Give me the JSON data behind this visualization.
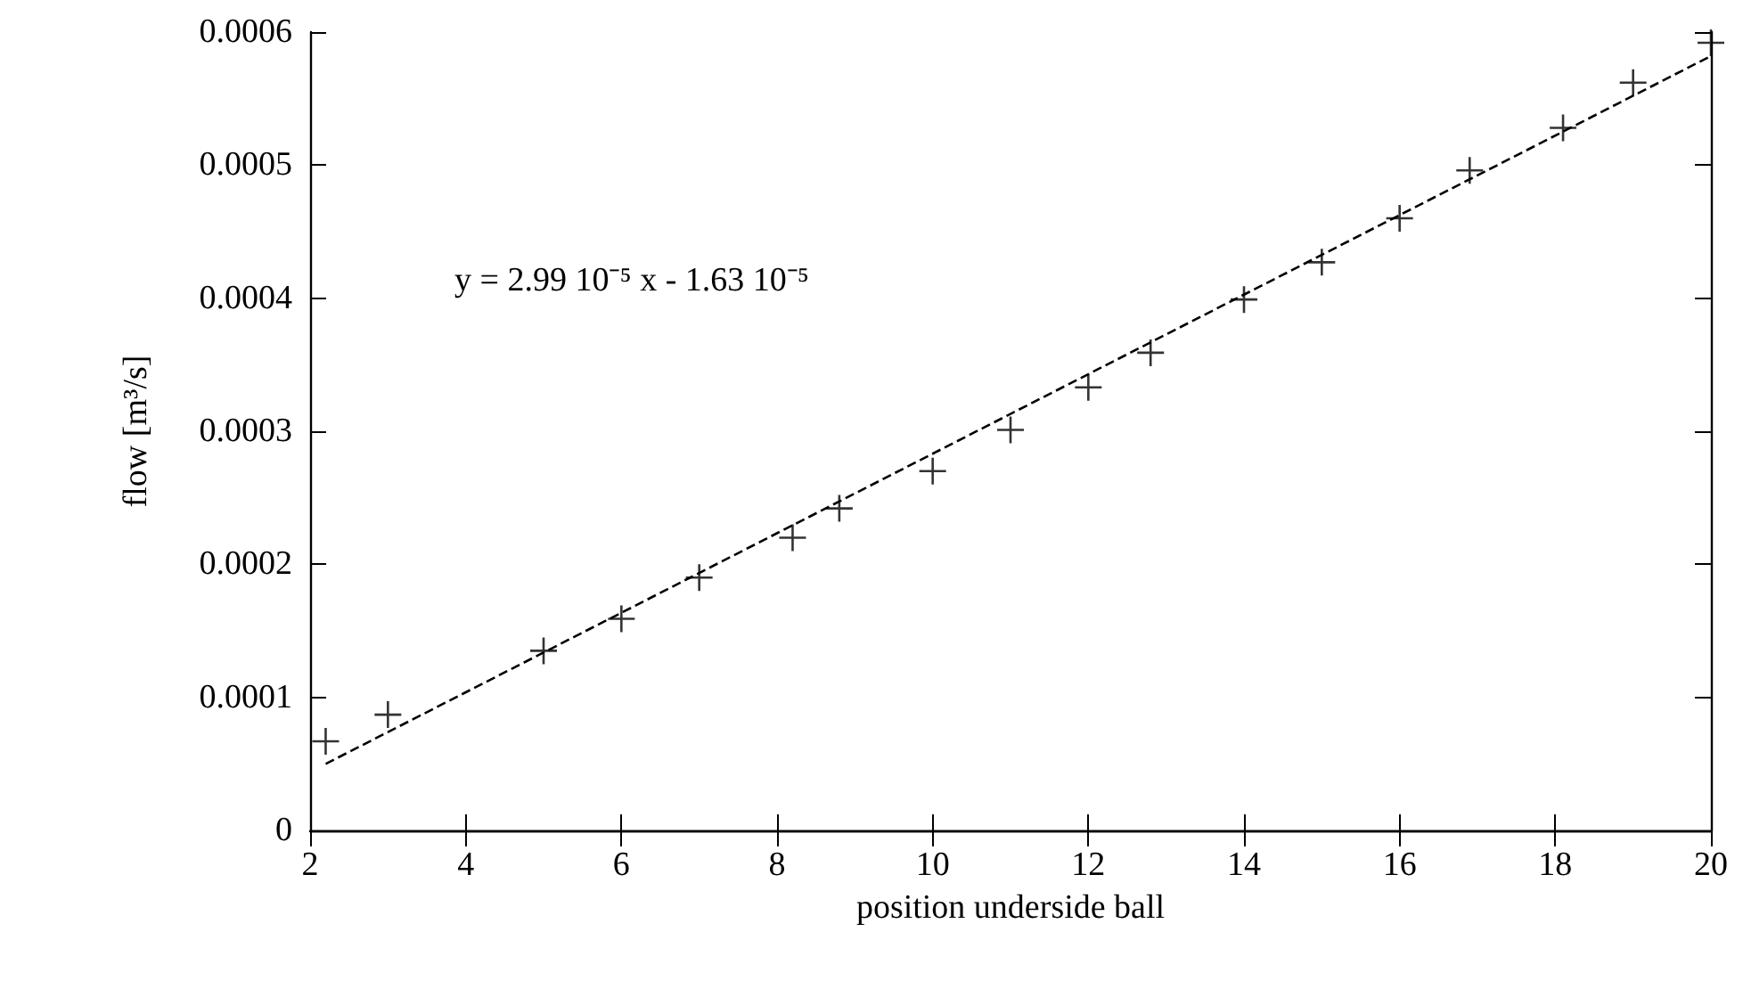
{
  "chart_data": {
    "type": "scatter",
    "xlabel": "position underside ball",
    "ylabel": "flow [m³/s]",
    "annotations": [
      "y = 2.99 10⁻⁵ x - 1.63 10⁻⁵"
    ],
    "xlim": [
      2,
      20
    ],
    "xticks": [
      2,
      4,
      6,
      8,
      10,
      12,
      14,
      16,
      18,
      20
    ],
    "ylim": [
      0,
      0.0006
    ],
    "yticks": [
      0,
      0.0001,
      0.0002,
      0.0003,
      0.0004,
      0.0005,
      0.0006
    ],
    "grid": false,
    "series": [
      {
        "marker": "cross",
        "color": "#000000",
        "x": [
          2.2,
          3,
          5,
          6,
          7,
          8.2,
          8.8,
          10,
          11,
          12,
          12.8,
          14,
          15,
          16,
          16.9,
          18.1,
          19,
          20
        ],
        "values": [
          6.7e-05,
          8.7e-05,
          0.000135,
          0.000159,
          0.00019,
          0.00022,
          0.000242,
          0.00027,
          0.000301,
          0.000333,
          0.000359,
          0.000399,
          0.000427,
          0.00046,
          0.000496,
          0.000528,
          0.000562,
          0.000592
        ]
      },
      {
        "type": "line",
        "marker": "none",
        "line_style": "dashed",
        "color": "#000000",
        "x": [
          2.2,
          20
        ],
        "values": [
          5e-05,
          0.000582
        ]
      }
    ]
  }
}
